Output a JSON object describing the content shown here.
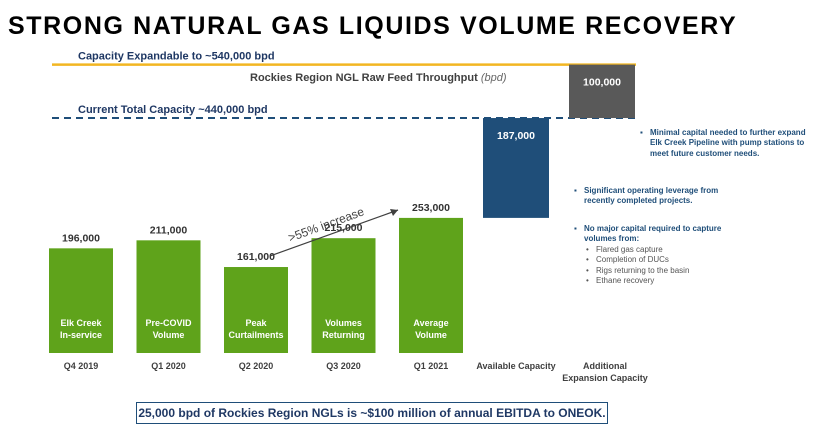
{
  "page": {
    "title": "STRONG NATURAL GAS LIQUIDS VOLUME RECOVERY",
    "footer": "25,000 bpd of Rockies Region NGLs is ~$100 million of annual EBITDA to ONEOK."
  },
  "chart_data": {
    "type": "bar",
    "title": "Rockies Region NGL Raw Feed Throughput",
    "unit": "(bpd)",
    "ylim": [
      0,
      560000
    ],
    "bars": [
      {
        "category": "Q4 2019",
        "value": 196000,
        "value_label": "196,000",
        "inner_label": [
          "Elk Creek",
          "In-service"
        ],
        "color": "#5fa31b"
      },
      {
        "category": "Q1 2020",
        "value": 211000,
        "value_label": "211,000",
        "inner_label": [
          "Pre-COVID",
          "Volume"
        ],
        "color": "#5fa31b"
      },
      {
        "category": "Q2 2020",
        "value": 161000,
        "value_label": "161,000",
        "inner_label": [
          "Peak",
          "Curtailments"
        ],
        "color": "#5fa31b"
      },
      {
        "category": "Q3 2020",
        "value": 215000,
        "value_label": "215,000",
        "inner_label": [
          "Volumes",
          "Returning"
        ],
        "color": "#5fa31b"
      },
      {
        "category": "Q1 2021",
        "value": 253000,
        "value_label": "253,000",
        "inner_label": [
          "Average",
          "Volume"
        ],
        "color": "#5fa31b"
      }
    ],
    "capacity_bars": [
      {
        "category": "Available Capacity",
        "category_lines": [
          "Available Capacity"
        ],
        "base": 253000,
        "value": 187000,
        "value_label": "187,000",
        "color": "#1f4e79"
      },
      {
        "category": "Additional Expansion Capacity",
        "category_lines": [
          "Additional",
          "Expansion Capacity"
        ],
        "base": 440000,
        "value": 100000,
        "value_label": "100,000",
        "color": "#595959"
      }
    ],
    "reference_lines": [
      {
        "label": "Capacity Expandable to ~540,000 bpd",
        "value": 540000,
        "style": "solid",
        "color": "#f2b622"
      },
      {
        "label": "Current Total Capacity ~440,000 bpd",
        "value": 440000,
        "style": "dashed",
        "color": "#1f4e79"
      }
    ],
    "annotation": ">55% increase"
  },
  "notes": {
    "expansion": "Minimal capital needed to further expand Elk Creek Pipeline with pump stations to meet future customer needs.",
    "leverage": "Significant operating leverage from recently completed projects.",
    "no_capital": "No major capital required to capture volumes from:",
    "sources": [
      "Flared gas capture",
      "Completion of DUCs",
      "Rigs returning to the basin",
      "Ethane recovery"
    ]
  },
  "colors": {
    "bar_green": "#5fa31b",
    "available_blue": "#1f4e79",
    "expansion_gray": "#595959",
    "expandable_line": "#f2b622",
    "text_navy": "#1f3864"
  }
}
